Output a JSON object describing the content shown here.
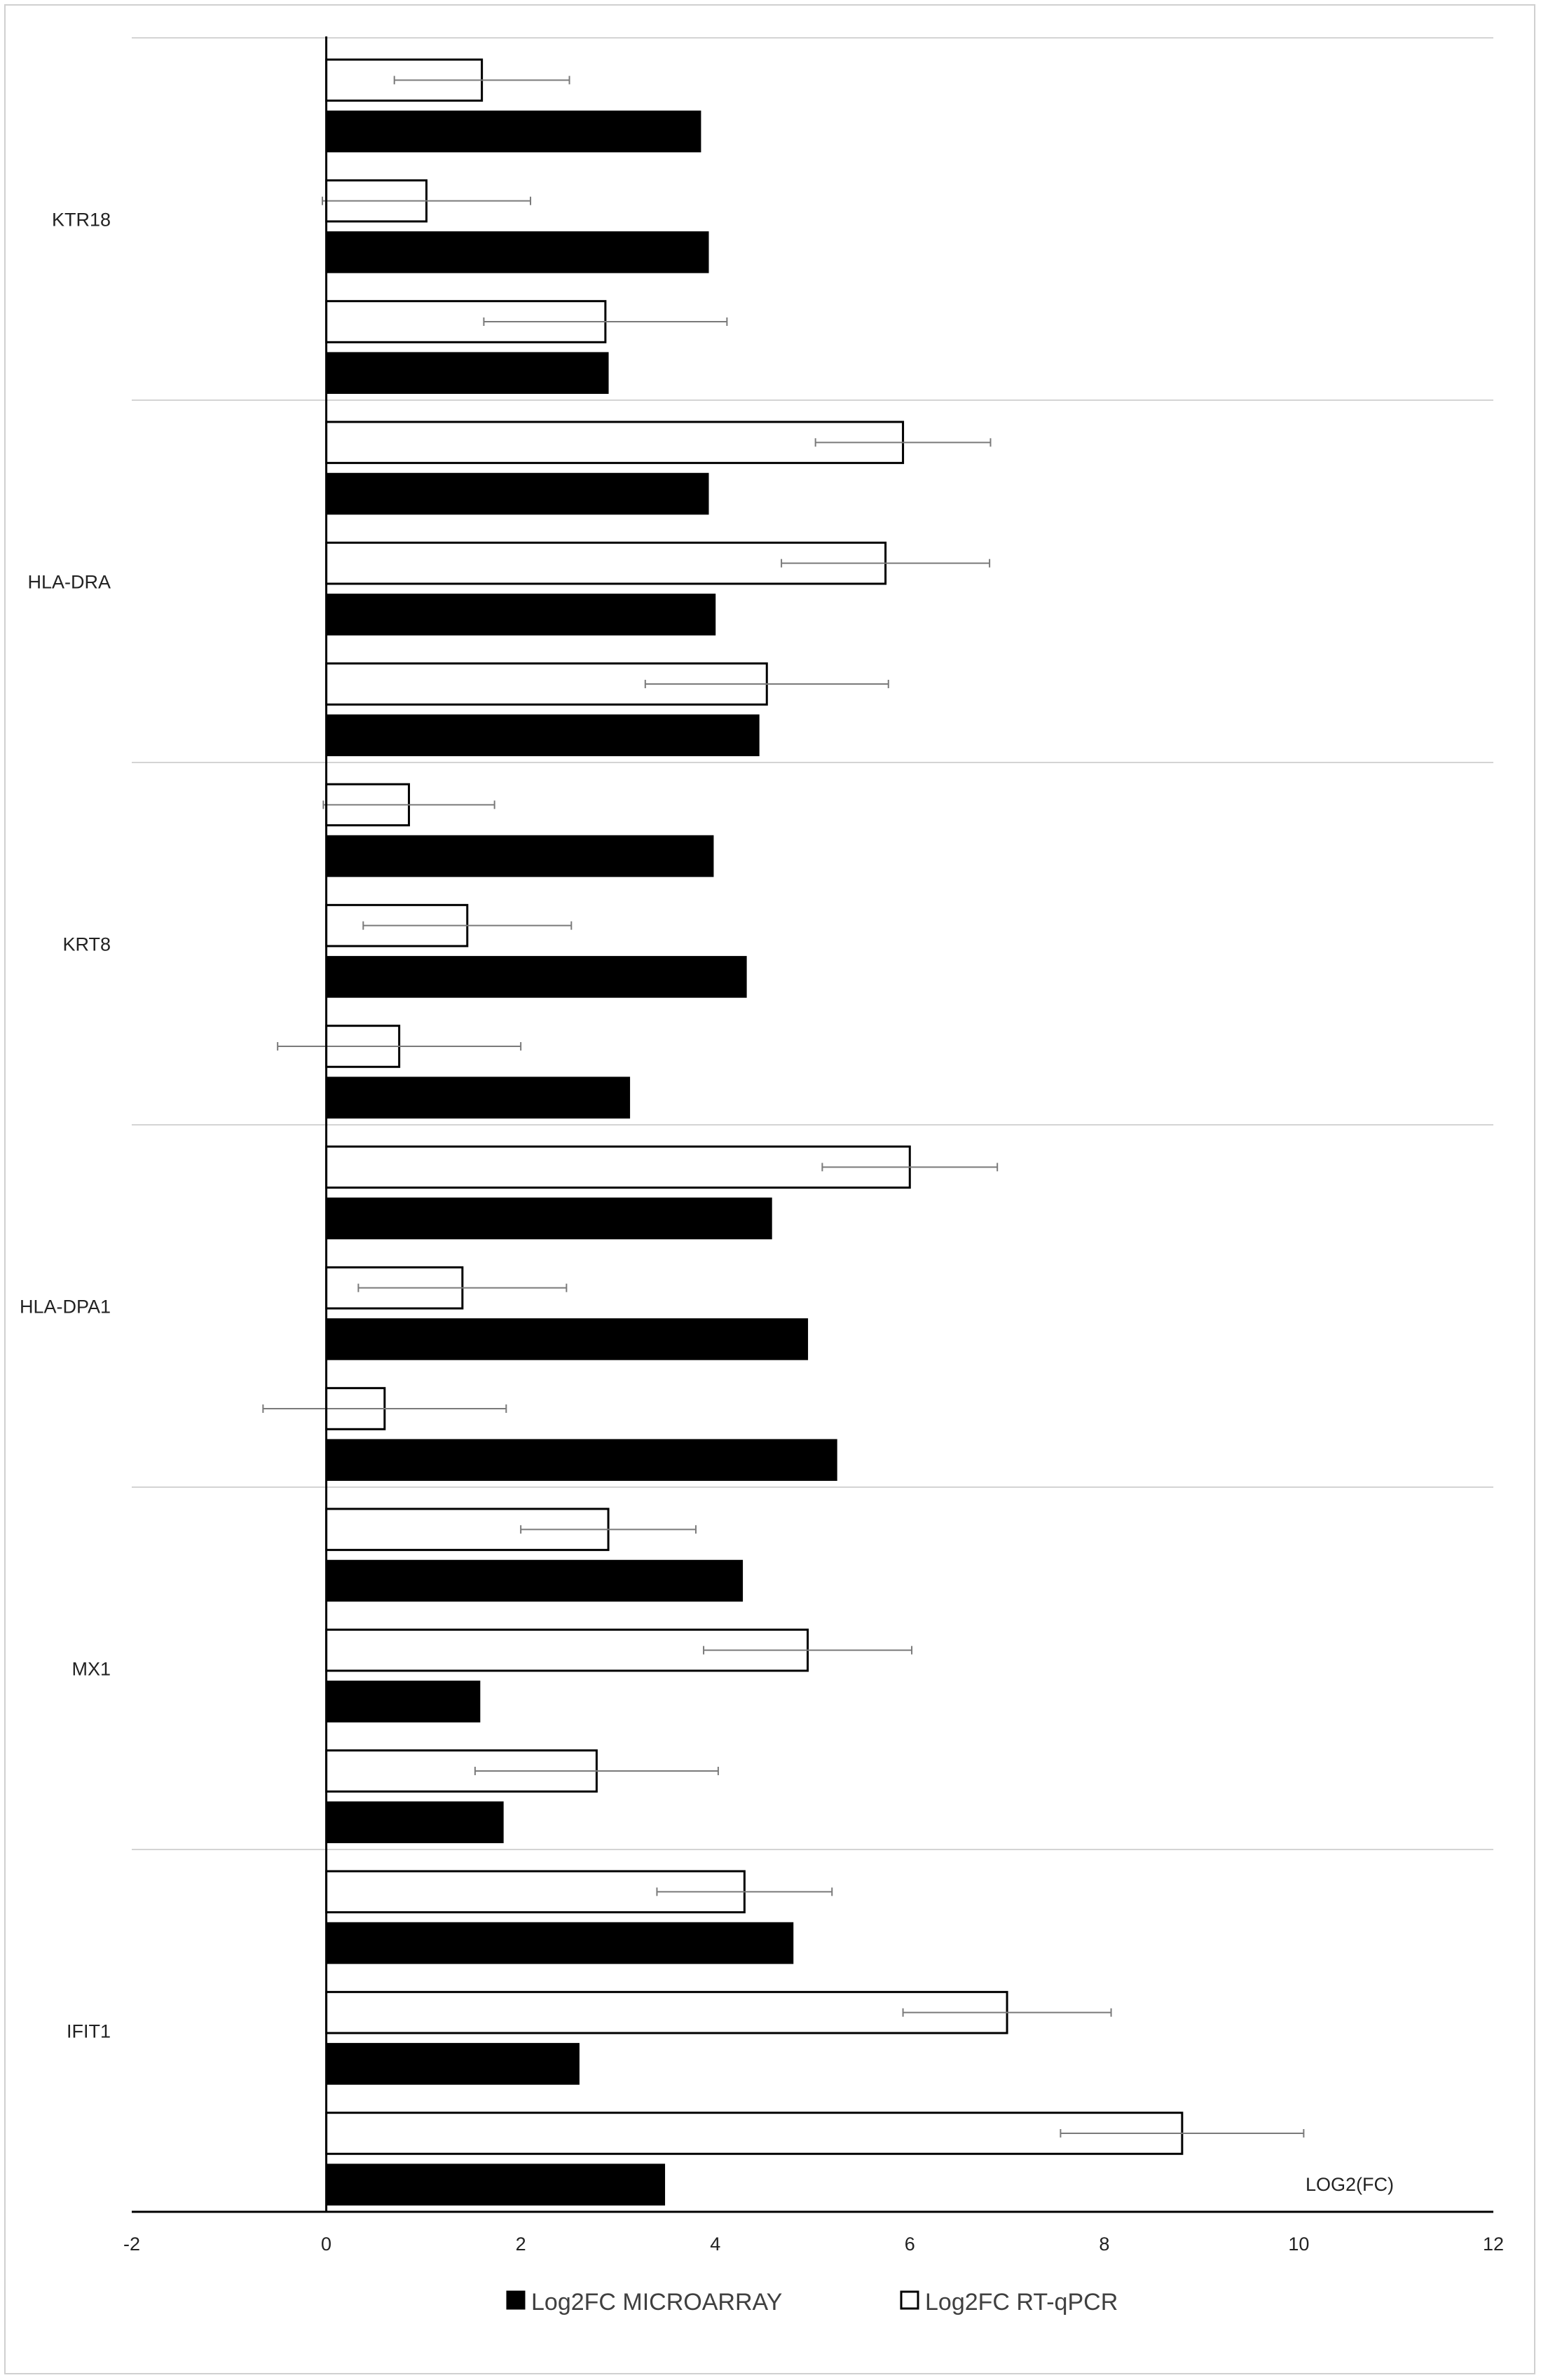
{
  "chart_data": {
    "type": "bar",
    "orientation": "horizontal",
    "xlabel": "LOG2(FC)",
    "xlim": [
      -2,
      12
    ],
    "x_ticks": [
      "-2",
      "0",
      "2",
      "4",
      "6",
      "8",
      "10",
      "12"
    ],
    "grid": "horizontal separators between gene groups",
    "legend_position": "bottom",
    "legend": [
      {
        "label": "Log2FC MICROARRAY",
        "fill": "#000000",
        "series": "microarray"
      },
      {
        "label": "Log2FC RT-qPCR",
        "fill": "#ffffff",
        "series": "rtqpcr"
      }
    ],
    "categories": [
      {
        "name": "KTR18",
        "pairs": [
          {
            "rtqpcr": 1.6,
            "err": 0.9,
            "microarray": 3.85
          },
          {
            "rtqpcr": 1.03,
            "err": 1.07,
            "microarray": 3.93
          },
          {
            "rtqpcr": 2.87,
            "err": 1.25,
            "microarray": 2.9
          }
        ]
      },
      {
        "name": "HLA-DRA",
        "pairs": [
          {
            "rtqpcr": 5.93,
            "err": 0.9,
            "microarray": 3.93
          },
          {
            "rtqpcr": 5.75,
            "err": 1.07,
            "microarray": 4.0
          },
          {
            "rtqpcr": 4.53,
            "err": 1.25,
            "microarray": 4.45
          }
        ]
      },
      {
        "name": "KRT8",
        "pairs": [
          {
            "rtqpcr": 0.85,
            "err": 0.88,
            "microarray": 3.98
          },
          {
            "rtqpcr": 1.45,
            "err": 1.07,
            "microarray": 4.32
          },
          {
            "rtqpcr": 0.75,
            "err": 1.25,
            "microarray": 3.12
          }
        ]
      },
      {
        "name": "HLA-DPA1",
        "pairs": [
          {
            "rtqpcr": 6.0,
            "err": 0.9,
            "microarray": 4.58
          },
          {
            "rtqpcr": 1.4,
            "err": 1.07,
            "microarray": 4.95
          },
          {
            "rtqpcr": 0.6,
            "err": 1.25,
            "microarray": 5.25
          }
        ]
      },
      {
        "name": "MX1",
        "pairs": [
          {
            "rtqpcr": 2.9,
            "err": 0.9,
            "microarray": 4.28
          },
          {
            "rtqpcr": 4.95,
            "err": 1.07,
            "microarray": 1.58
          },
          {
            "rtqpcr": 2.78,
            "err": 1.25,
            "microarray": 1.82
          }
        ]
      },
      {
        "name": "IFIT1",
        "pairs": [
          {
            "rtqpcr": 4.3,
            "err": 0.9,
            "microarray": 4.8
          },
          {
            "rtqpcr": 7.0,
            "err": 1.07,
            "microarray": 2.6
          },
          {
            "rtqpcr": 8.8,
            "err": 1.25,
            "microarray": 3.48
          }
        ]
      }
    ]
  }
}
